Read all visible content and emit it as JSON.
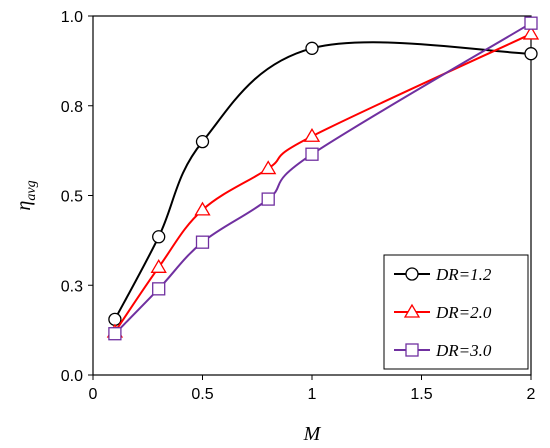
{
  "chart_data": {
    "type": "line",
    "xlabel": "M",
    "ylabel_base": "η",
    "ylabel_sub": "avg",
    "xlim": [
      0,
      2
    ],
    "ylim": [
      0.0,
      1.0
    ],
    "xticks": [
      0,
      0.5,
      1,
      1.5,
      2
    ],
    "xtick_labels": [
      "0",
      "0.5",
      "1",
      "1.5",
      "2"
    ],
    "yticks": [
      0.0,
      0.25,
      0.5,
      0.75,
      1.0
    ],
    "ytick_labels": [
      "0.0",
      "0.3",
      "0.5",
      "0.8",
      "1.0"
    ],
    "grid": false,
    "legend_position": "bottom-right",
    "series": [
      {
        "name": "DR=1.2",
        "color": "#000000",
        "marker": "circle",
        "x": [
          0.1,
          0.3,
          0.5,
          1.0,
          2.0
        ],
        "y": [
          0.155,
          0.385,
          0.65,
          0.91,
          0.895
        ]
      },
      {
        "name": "DR=2.0",
        "color": "#ff0000",
        "marker": "triangle",
        "x": [
          0.1,
          0.3,
          0.5,
          0.8,
          1.0,
          2.0
        ],
        "y": [
          0.12,
          0.3,
          0.46,
          0.575,
          0.665,
          0.95
        ]
      },
      {
        "name": "DR=3.0",
        "color": "#7030a0",
        "marker": "square",
        "x": [
          0.1,
          0.3,
          0.5,
          0.8,
          1.0,
          2.0
        ],
        "y": [
          0.115,
          0.24,
          0.37,
          0.49,
          0.615,
          0.98
        ]
      }
    ]
  }
}
